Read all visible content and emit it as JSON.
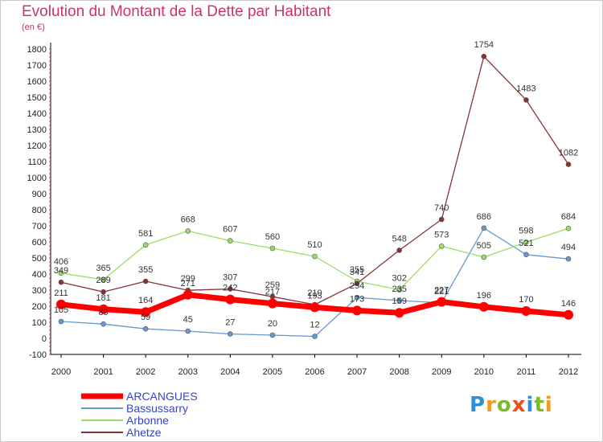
{
  "title": "Evolution du Montant de la Dette par Habitant",
  "subtitle": "(en €)",
  "brand": {
    "letters": [
      "P",
      "r",
      "o",
      "x",
      "i",
      "t",
      "i"
    ],
    "colors": [
      "#2f8fd6",
      "#f39a1f",
      "#7dbb2b",
      "#e84e1b",
      "#2f8fd6",
      "#7dbb2b",
      "#f39a1f"
    ]
  },
  "chart_data": {
    "type": "line",
    "title": "Evolution du Montant de la Dette par Habitant",
    "xlabel": "",
    "ylabel": "(en €)",
    "x": [
      "2000",
      "2001",
      "2002",
      "2003",
      "2004",
      "2005",
      "2006",
      "2007",
      "2008",
      "2009",
      "2010",
      "2011",
      "2012"
    ],
    "ylim": [
      -100,
      1800
    ],
    "yticks": [
      -100,
      0,
      100,
      200,
      300,
      400,
      500,
      600,
      700,
      800,
      900,
      1000,
      1100,
      1200,
      1300,
      1400,
      1500,
      1600,
      1700,
      1800
    ],
    "grid": false,
    "legend_position": "bottom-left",
    "series": [
      {
        "name": "ARCANGUES",
        "color": "#ff0000",
        "values": [
          211,
          181,
          164,
          271,
          242,
          217,
          193,
          173,
          159,
          227,
          196,
          170,
          146
        ]
      },
      {
        "name": "Bassussarry",
        "color": "#6699cc",
        "values": [
          105,
          89,
          59,
          45,
          27,
          20,
          12,
          254,
          235,
          221,
          686,
          521,
          494
        ]
      },
      {
        "name": "Arbonne",
        "color": "#99dd66",
        "values": [
          406,
          365,
          581,
          668,
          607,
          560,
          510,
          355,
          302,
          573,
          505,
          598,
          684
        ]
      },
      {
        "name": "Ahetze",
        "color": "#883333",
        "values": [
          349,
          289,
          355,
          299,
          307,
          259,
          210,
          341,
          548,
          740,
          1754,
          1483,
          1082
        ]
      }
    ]
  }
}
